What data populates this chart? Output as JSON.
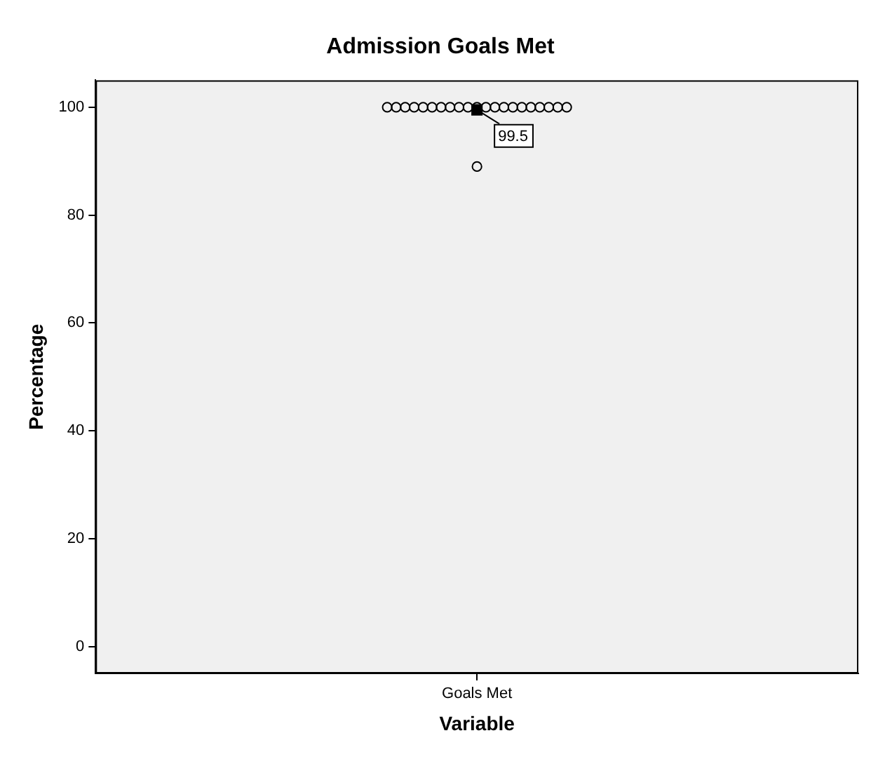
{
  "chart_data": {
    "type": "scatter",
    "title": "Admission Goals Met",
    "xlabel": "Variable",
    "ylabel": "Percentage",
    "categories": [
      "Goals Met"
    ],
    "series": [
      {
        "marker": "circle",
        "color": "#000000",
        "x": [
          "Goals Met",
          "Goals Met",
          "Goals Met",
          "Goals Met",
          "Goals Met",
          "Goals Met",
          "Goals Met",
          "Goals Met",
          "Goals Met",
          "Goals Met",
          "Goals Met",
          "Goals Met",
          "Goals Met",
          "Goals Met",
          "Goals Met",
          "Goals Met",
          "Goals Met",
          "Goals Met",
          "Goals Met",
          "Goals Met",
          "Goals Met",
          "Goals Met"
        ],
        "values": [
          100,
          100,
          100,
          100,
          100,
          100,
          100,
          100,
          100,
          100,
          100,
          100,
          100,
          100,
          100,
          100,
          100,
          100,
          100,
          100,
          100,
          89
        ]
      },
      {
        "marker": "square",
        "color": "#000000",
        "x": [
          "Goals Met"
        ],
        "values": [
          99.5
        ],
        "value_labels": [
          "99.5"
        ]
      }
    ],
    "ylim": [
      -5,
      105
    ],
    "yticks": [
      0,
      20,
      40,
      60,
      80,
      100
    ],
    "grid": false,
    "legend": false
  }
}
